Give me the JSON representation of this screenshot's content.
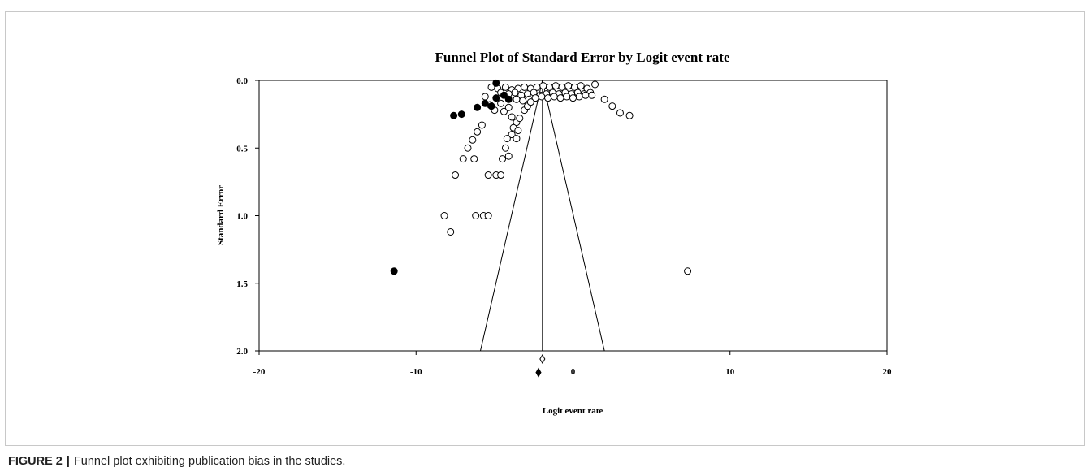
{
  "figure": {
    "label": "FIGURE 2",
    "separator": "|",
    "caption": "Funnel plot exhibiting publication bias in the studies."
  },
  "chart_data": {
    "type": "scatter",
    "title": "Funnel Plot of Standard Error by Logit event rate",
    "xlabel": "Logit event rate",
    "ylabel": "Standard Error",
    "xlim": [
      -20,
      20
    ],
    "ylim": [
      0,
      2
    ],
    "y_inverted": true,
    "x_ticks": [
      -20,
      -10,
      0,
      10,
      20
    ],
    "y_ticks": [
      0.0,
      0.5,
      1.0,
      1.5,
      2.0
    ],
    "x_tick_labels": [
      "-20",
      "-10",
      "0",
      "10",
      "20"
    ],
    "y_tick_labels": [
      "0.0",
      "0.5",
      "1.0",
      "1.5",
      "2.0"
    ],
    "grid": false,
    "legend": "none",
    "colors": {
      "ink": "#000000",
      "observed_fill": "#ffffff",
      "imputed_fill": "#000000"
    },
    "funnel": {
      "center": -1.95,
      "lower_left_x": -5.9,
      "lower_right_x": 2.0,
      "se_max": 2.0
    },
    "combined_estimates": {
      "observed": {
        "x": -1.95,
        "se": 2.06
      },
      "imputed": {
        "x": -2.2,
        "se": 2.16
      }
    },
    "series": [
      {
        "style": "open",
        "points": [
          [
            -5.2,
            0.05
          ],
          [
            -4.8,
            0.06
          ],
          [
            -4.3,
            0.05
          ],
          [
            -3.9,
            0.07
          ],
          [
            -3.5,
            0.06
          ],
          [
            -3.1,
            0.05
          ],
          [
            -2.7,
            0.06
          ],
          [
            -2.3,
            0.05
          ],
          [
            -1.9,
            0.04
          ],
          [
            -1.5,
            0.05
          ],
          [
            -1.1,
            0.04
          ],
          [
            -0.7,
            0.05
          ],
          [
            -0.3,
            0.04
          ],
          [
            0.1,
            0.05
          ],
          [
            0.5,
            0.04
          ],
          [
            0.9,
            0.06
          ],
          [
            -4.6,
            0.09
          ],
          [
            -4.1,
            0.1
          ],
          [
            -3.7,
            0.09
          ],
          [
            -3.3,
            0.11
          ],
          [
            -2.9,
            0.1
          ],
          [
            -2.5,
            0.09
          ],
          [
            -2.1,
            0.11
          ],
          [
            -1.7,
            0.1
          ],
          [
            -1.3,
            0.09
          ],
          [
            -0.9,
            0.1
          ],
          [
            -0.5,
            0.09
          ],
          [
            -0.1,
            0.1
          ],
          [
            0.3,
            0.09
          ],
          [
            0.7,
            0.1
          ],
          [
            1.1,
            0.09
          ],
          [
            -3.6,
            0.14
          ],
          [
            -3.2,
            0.15
          ],
          [
            -2.8,
            0.14
          ],
          [
            -2.4,
            0.13
          ],
          [
            -2.0,
            0.12
          ],
          [
            -1.6,
            0.13
          ],
          [
            -1.2,
            0.12
          ],
          [
            -0.8,
            0.13
          ],
          [
            -0.4,
            0.12
          ],
          [
            0.0,
            0.13
          ],
          [
            0.4,
            0.12
          ],
          [
            0.8,
            0.11
          ],
          [
            1.2,
            0.11
          ],
          [
            1.4,
            0.03
          ],
          [
            -5.6,
            0.12
          ],
          [
            -5.3,
            0.18
          ],
          [
            -5.0,
            0.22
          ],
          [
            -4.6,
            0.17
          ],
          [
            -4.4,
            0.23
          ],
          [
            -4.1,
            0.2
          ],
          [
            -3.9,
            0.27
          ],
          [
            -3.6,
            0.31
          ],
          [
            -3.4,
            0.28
          ],
          [
            -3.1,
            0.22
          ],
          [
            -2.9,
            0.19
          ],
          [
            -2.7,
            0.16
          ],
          [
            -5.8,
            0.33
          ],
          [
            -6.1,
            0.38
          ],
          [
            -6.4,
            0.44
          ],
          [
            -6.7,
            0.5
          ],
          [
            -7.0,
            0.58
          ],
          [
            -6.3,
            0.58
          ],
          [
            -3.8,
            0.35
          ],
          [
            -3.5,
            0.37
          ],
          [
            -3.9,
            0.4
          ],
          [
            -3.6,
            0.43
          ],
          [
            -4.2,
            0.43
          ],
          [
            -4.3,
            0.5
          ],
          [
            -4.5,
            0.58
          ],
          [
            -4.1,
            0.56
          ],
          [
            2.0,
            0.14
          ],
          [
            2.5,
            0.19
          ],
          [
            3.0,
            0.24
          ],
          [
            3.6,
            0.26
          ],
          [
            -7.5,
            0.7
          ],
          [
            -5.4,
            0.7
          ],
          [
            -4.9,
            0.7
          ],
          [
            -4.6,
            0.7
          ],
          [
            -8.2,
            1.0
          ],
          [
            -6.2,
            1.0
          ],
          [
            -5.7,
            1.0
          ],
          [
            -5.4,
            1.0
          ],
          [
            -7.8,
            1.12
          ],
          [
            7.3,
            1.41
          ]
        ]
      },
      {
        "style": "filled",
        "points": [
          [
            -4.9,
            0.02
          ],
          [
            -4.9,
            0.13
          ],
          [
            -4.4,
            0.11
          ],
          [
            -4.1,
            0.14
          ],
          [
            -5.2,
            0.19
          ],
          [
            -5.6,
            0.17
          ],
          [
            -6.1,
            0.2
          ],
          [
            -7.1,
            0.25
          ],
          [
            -7.6,
            0.26
          ],
          [
            -11.4,
            1.41
          ]
        ]
      }
    ]
  }
}
